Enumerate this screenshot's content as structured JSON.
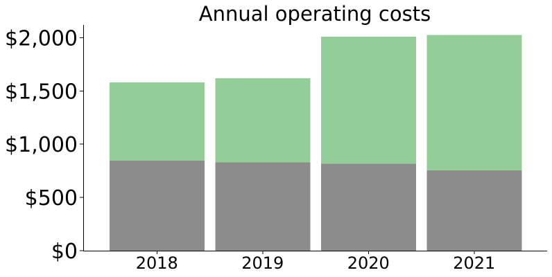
{
  "chart_data": {
    "type": "bar",
    "stacked": true,
    "title": "Annual operating costs",
    "xlabel": "",
    "ylabel": "",
    "categories": [
      "2018",
      "2019",
      "2020",
      "2021"
    ],
    "series": [
      {
        "color": "#8c8c8c",
        "values": [
          845,
          830,
          815,
          755
        ]
      },
      {
        "color": "#93cd98",
        "values": [
          735,
          790,
          1195,
          1270
        ]
      }
    ],
    "ylim": [
      0,
      2120
    ],
    "yticks": [
      0,
      500,
      1000,
      1500,
      2000
    ],
    "ytick_labels": [
      "$0",
      "$500",
      "$1,000",
      "$1,500",
      "$2,000"
    ],
    "grid": false,
    "legend": "none"
  }
}
